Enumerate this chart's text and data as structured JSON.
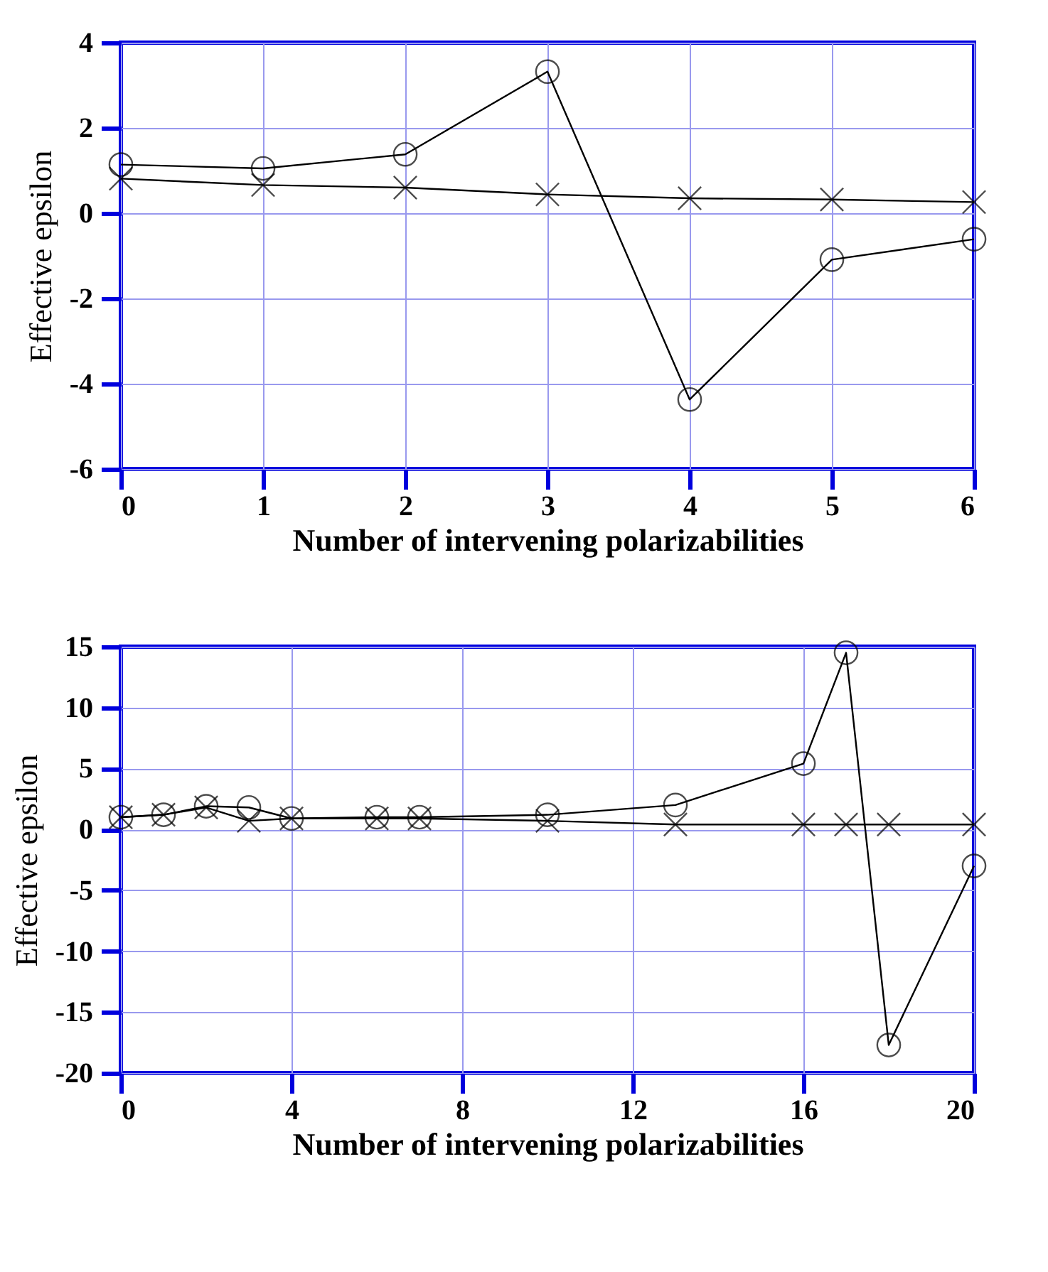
{
  "chart_data": [
    {
      "type": "line",
      "xlabel": "Number of intervening polarizabilities",
      "ylabel": "Effective epsilon",
      "x": [
        0,
        1,
        2,
        3,
        4,
        5,
        6
      ],
      "xlim": [
        0,
        6
      ],
      "xticks": [
        0,
        1,
        2,
        3,
        4,
        5,
        6
      ],
      "ylim": [
        -6,
        4
      ],
      "yticks": [
        -6,
        -4,
        -2,
        0,
        2,
        4
      ],
      "grid": true,
      "line_style": "solid",
      "series": [
        {
          "color": "#000000",
          "marker": "circle",
          "values": [
            1.14,
            1.05,
            1.38,
            3.32,
            -4.37,
            -1.09,
            -0.61
          ]
        },
        {
          "color": "#000000",
          "marker": "cross",
          "values": [
            0.81,
            0.66,
            0.6,
            0.44,
            0.35,
            0.32,
            0.26
          ]
        }
      ]
    },
    {
      "type": "line",
      "xlabel": "Number of intervening polarizabilities",
      "ylabel": "Effective epsilon",
      "x": [
        0,
        1,
        2,
        3,
        4,
        6,
        7,
        10,
        13,
        16,
        17,
        18,
        20
      ],
      "xlim": [
        0,
        20
      ],
      "xticks": [
        0,
        4,
        8,
        12,
        16,
        20
      ],
      "ylim": [
        -20,
        15
      ],
      "yticks": [
        -20,
        -15,
        -10,
        -5,
        0,
        5,
        10,
        15
      ],
      "grid": true,
      "line_style": "solid",
      "series": [
        {
          "color": "#000000",
          "marker": "circle",
          "values": [
            1.0,
            1.2,
            1.9,
            1.8,
            0.9,
            1.0,
            1.0,
            1.2,
            2.0,
            5.4,
            14.5,
            -17.7,
            -3.0
          ]
        },
        {
          "color": "#000000",
          "marker": "cross",
          "values": [
            1.0,
            1.2,
            1.8,
            0.7,
            0.9,
            0.9,
            0.9,
            0.7,
            0.4,
            0.4,
            0.4,
            0.4,
            0.4
          ]
        }
      ]
    }
  ]
}
